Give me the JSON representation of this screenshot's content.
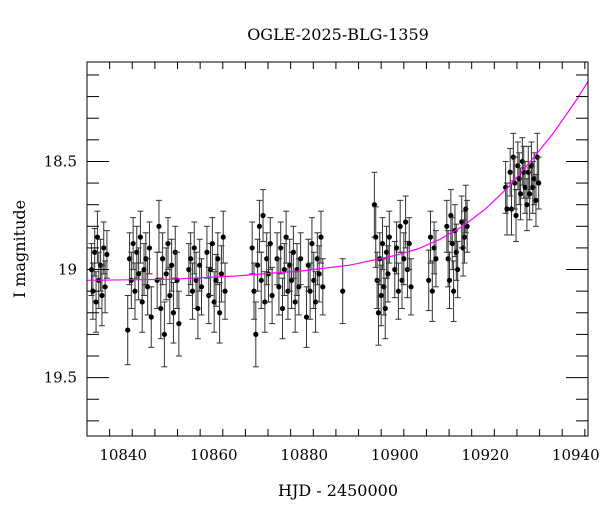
{
  "chart_data": {
    "type": "scatter",
    "title": "OGLE-2025-BLG-1359",
    "xlabel": "HJD - 2450000",
    "ylabel": "I magnitude",
    "xlim": [
      10832,
      10942.7
    ],
    "ylim": [
      19.77,
      18.04
    ],
    "y_inverted": true,
    "xticks": [
      10840,
      10860,
      10880,
      10900,
      10920,
      10940
    ],
    "xtick_labels": [
      "10840",
      "10860",
      "10880",
      "10900",
      "10920",
      "10940"
    ],
    "yticks": [
      18.5,
      19,
      19.5
    ],
    "ytick_labels": [
      "18.5",
      "19",
      "19.5"
    ],
    "colors": {
      "points": "#000000",
      "model": "#ff00ff"
    },
    "series": [
      {
        "name": "data",
        "columns": [
          "hjd",
          "mag",
          "err"
        ],
        "points": [
          [
            10833.0,
            19.0,
            0.12
          ],
          [
            10833.3,
            19.1,
            0.13
          ],
          [
            10833.7,
            18.92,
            0.11
          ],
          [
            10834.0,
            19.15,
            0.14
          ],
          [
            10834.3,
            18.85,
            0.12
          ],
          [
            10834.6,
            19.05,
            0.13
          ],
          [
            10835.0,
            18.98,
            0.12
          ],
          [
            10835.3,
            19.12,
            0.14
          ],
          [
            10835.7,
            18.9,
            0.12
          ],
          [
            10836.0,
            19.08,
            0.12
          ],
          [
            10836.4,
            18.93,
            0.11
          ],
          [
            10841.0,
            19.28,
            0.16
          ],
          [
            10841.4,
            18.95,
            0.12
          ],
          [
            10841.8,
            19.05,
            0.13
          ],
          [
            10842.2,
            18.88,
            0.12
          ],
          [
            10842.6,
            19.1,
            0.13
          ],
          [
            10843.0,
            18.92,
            0.12
          ],
          [
            10843.4,
            19.02,
            0.12
          ],
          [
            10843.8,
            18.85,
            0.12
          ],
          [
            10844.2,
            19.15,
            0.14
          ],
          [
            10844.6,
            19.0,
            0.12
          ],
          [
            10845.0,
            18.95,
            0.12
          ],
          [
            10845.4,
            19.08,
            0.13
          ],
          [
            10845.8,
            18.9,
            0.12
          ],
          [
            10846.2,
            19.22,
            0.14
          ],
          [
            10847.5,
            19.05,
            0.13
          ],
          [
            10847.9,
            18.8,
            0.12
          ],
          [
            10848.3,
            19.18,
            0.14
          ],
          [
            10848.7,
            18.95,
            0.12
          ],
          [
            10849.1,
            19.3,
            0.15
          ],
          [
            10849.5,
            19.02,
            0.12
          ],
          [
            10849.9,
            18.88,
            0.12
          ],
          [
            10850.3,
            19.12,
            0.13
          ],
          [
            10850.7,
            18.98,
            0.12
          ],
          [
            10851.1,
            19.2,
            0.14
          ],
          [
            10851.5,
            18.92,
            0.12
          ],
          [
            10851.9,
            19.05,
            0.13
          ],
          [
            10852.3,
            19.25,
            0.15
          ],
          [
            10854.5,
            19.0,
            0.12
          ],
          [
            10854.9,
            18.95,
            0.12
          ],
          [
            10855.3,
            19.1,
            0.13
          ],
          [
            10855.7,
            18.9,
            0.12
          ],
          [
            10856.1,
            19.05,
            0.13
          ],
          [
            10856.5,
            19.18,
            0.14
          ],
          [
            10856.9,
            18.98,
            0.12
          ],
          [
            10857.3,
            19.08,
            0.13
          ],
          [
            10858.5,
            18.92,
            0.12
          ],
          [
            10858.9,
            19.12,
            0.13
          ],
          [
            10859.3,
            19.0,
            0.12
          ],
          [
            10859.7,
            18.88,
            0.12
          ],
          [
            10860.1,
            19.15,
            0.14
          ],
          [
            10860.5,
            19.05,
            0.12
          ],
          [
            10860.9,
            18.95,
            0.12
          ],
          [
            10861.3,
            19.2,
            0.14
          ],
          [
            10861.7,
            19.02,
            0.13
          ],
          [
            10862.1,
            18.85,
            0.12
          ],
          [
            10862.5,
            19.1,
            0.13
          ],
          [
            10868.5,
            18.9,
            0.12
          ],
          [
            10868.9,
            19.1,
            0.13
          ],
          [
            10869.3,
            19.3,
            0.15
          ],
          [
            10869.7,
            18.98,
            0.12
          ],
          [
            10870.1,
            18.8,
            0.12
          ],
          [
            10870.5,
            19.05,
            0.13
          ],
          [
            10870.9,
            18.75,
            0.12
          ],
          [
            10871.3,
            19.15,
            0.14
          ],
          [
            10871.7,
            18.95,
            0.12
          ],
          [
            10872.1,
            19.02,
            0.13
          ],
          [
            10872.5,
            18.88,
            0.12
          ],
          [
            10872.9,
            19.12,
            0.13
          ],
          [
            10874.0,
            18.95,
            0.12
          ],
          [
            10874.4,
            19.08,
            0.13
          ],
          [
            10874.8,
            18.9,
            0.12
          ],
          [
            10875.2,
            19.18,
            0.14
          ],
          [
            10875.6,
            19.0,
            0.12
          ],
          [
            10876.0,
            18.85,
            0.12
          ],
          [
            10876.4,
            19.1,
            0.13
          ],
          [
            10876.8,
            18.98,
            0.12
          ],
          [
            10877.2,
            19.05,
            0.13
          ],
          [
            10877.6,
            18.92,
            0.12
          ],
          [
            10878.0,
            19.15,
            0.14
          ],
          [
            10878.4,
            19.0,
            0.12
          ],
          [
            10878.8,
            19.08,
            0.13
          ],
          [
            10879.2,
            18.95,
            0.12
          ],
          [
            10880.5,
            19.22,
            0.14
          ],
          [
            10880.9,
            18.98,
            0.12
          ],
          [
            10881.3,
            19.1,
            0.13
          ],
          [
            10881.7,
            18.88,
            0.12
          ],
          [
            10882.1,
            19.05,
            0.13
          ],
          [
            10882.5,
            19.15,
            0.14
          ],
          [
            10882.9,
            18.95,
            0.12
          ],
          [
            10883.3,
            19.02,
            0.13
          ],
          [
            10883.7,
            18.85,
            0.12
          ],
          [
            10884.1,
            19.08,
            0.13
          ],
          [
            10888.5,
            19.1,
            0.15
          ],
          [
            10895.5,
            18.7,
            0.15
          ],
          [
            10895.8,
            18.85,
            0.14
          ],
          [
            10896.1,
            19.05,
            0.13
          ],
          [
            10896.4,
            19.2,
            0.15
          ],
          [
            10896.7,
            18.95,
            0.12
          ],
          [
            10897.0,
            19.12,
            0.14
          ],
          [
            10897.3,
            18.88,
            0.12
          ],
          [
            10897.6,
            19.08,
            0.13
          ],
          [
            10897.9,
            19.18,
            0.14
          ],
          [
            10898.2,
            18.92,
            0.12
          ],
          [
            10898.5,
            19.02,
            0.13
          ],
          [
            10898.8,
            18.85,
            0.12
          ],
          [
            10900.0,
            19.0,
            0.13
          ],
          [
            10900.4,
            18.9,
            0.12
          ],
          [
            10900.8,
            19.1,
            0.13
          ],
          [
            10901.2,
            18.8,
            0.12
          ],
          [
            10901.6,
            19.05,
            0.13
          ],
          [
            10902.0,
            18.95,
            0.12
          ],
          [
            10902.4,
            18.78,
            0.12
          ],
          [
            10902.8,
            19.0,
            0.13
          ],
          [
            10903.2,
            18.88,
            0.12
          ],
          [
            10903.6,
            19.08,
            0.13
          ],
          [
            10907.5,
            19.05,
            0.14
          ],
          [
            10907.9,
            18.85,
            0.12
          ],
          [
            10908.3,
            19.1,
            0.14
          ],
          [
            10908.7,
            18.9,
            0.12
          ],
          [
            10909.1,
            18.95,
            0.13
          ],
          [
            10911.5,
            18.8,
            0.12
          ],
          [
            10911.8,
            18.95,
            0.13
          ],
          [
            10912.1,
            19.05,
            0.13
          ],
          [
            10912.4,
            18.75,
            0.12
          ],
          [
            10912.7,
            18.88,
            0.12
          ],
          [
            10913.0,
            19.1,
            0.14
          ],
          [
            10913.3,
            18.82,
            0.12
          ],
          [
            10913.6,
            18.92,
            0.13
          ],
          [
            10913.9,
            19.0,
            0.13
          ],
          [
            10914.8,
            18.78,
            0.12
          ],
          [
            10915.1,
            18.9,
            0.13
          ],
          [
            10915.4,
            18.85,
            0.12
          ],
          [
            10915.7,
            18.72,
            0.11
          ],
          [
            10916.0,
            18.8,
            0.12
          ],
          [
            10924.5,
            18.62,
            0.12
          ],
          [
            10924.8,
            18.72,
            0.12
          ],
          [
            10925.5,
            18.55,
            0.11
          ],
          [
            10925.8,
            18.72,
            0.12
          ],
          [
            10926.2,
            18.48,
            0.11
          ],
          [
            10926.5,
            18.6,
            0.12
          ],
          [
            10926.8,
            18.75,
            0.12
          ],
          [
            10927.2,
            18.52,
            0.11
          ],
          [
            10927.5,
            18.58,
            0.12
          ],
          [
            10927.8,
            18.65,
            0.12
          ],
          [
            10928.2,
            18.5,
            0.11
          ],
          [
            10928.5,
            18.55,
            0.12
          ],
          [
            10928.8,
            18.62,
            0.12
          ],
          [
            10929.2,
            18.7,
            0.12
          ],
          [
            10929.5,
            18.55,
            0.12
          ],
          [
            10929.8,
            18.65,
            0.12
          ],
          [
            10930.2,
            18.52,
            0.11
          ],
          [
            10930.5,
            18.62,
            0.12
          ],
          [
            10930.8,
            18.58,
            0.12
          ],
          [
            10931.2,
            18.68,
            0.12
          ],
          [
            10931.5,
            18.48,
            0.11
          ],
          [
            10931.8,
            18.6,
            0.12
          ]
        ]
      },
      {
        "name": "model",
        "points": [
          [
            10832,
            19.05
          ],
          [
            10850,
            19.045
          ],
          [
            10865,
            19.03
          ],
          [
            10880,
            19.005
          ],
          [
            10890,
            18.98
          ],
          [
            10900,
            18.935
          ],
          [
            10905,
            18.905
          ],
          [
            10910,
            18.86
          ],
          [
            10915,
            18.8
          ],
          [
            10920,
            18.72
          ],
          [
            10925,
            18.62
          ],
          [
            10930,
            18.5
          ],
          [
            10935,
            18.37
          ],
          [
            10940,
            18.22
          ],
          [
            10942.7,
            18.13
          ]
        ]
      }
    ]
  }
}
